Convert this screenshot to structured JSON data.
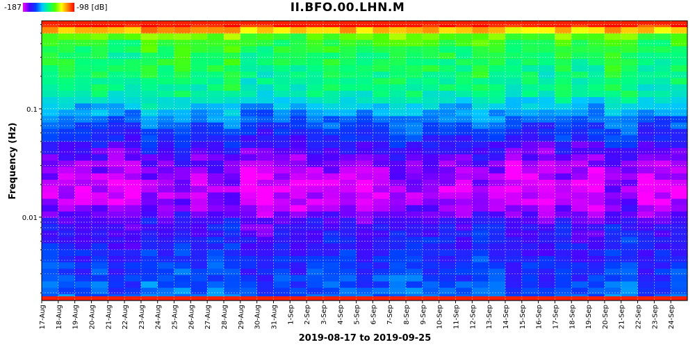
{
  "title": "II.BFO.00.LHN.M",
  "colorbar": {
    "min_label": "-187",
    "max_label": "-98 [dB]",
    "min_db": -187,
    "max_db": -98
  },
  "chart_data": {
    "type": "heatmap",
    "title": "II.BFO.00.LHN.M",
    "xlabel": "2019-08-17 to 2019-09-25",
    "ylabel": "Frequency (Hz)",
    "yscale": "log",
    "ylim": [
      0.0017,
      0.65
    ],
    "y_ticks": [
      {
        "value": 0.1,
        "label": "0.1"
      },
      {
        "value": 0.01,
        "label": "0.01"
      }
    ],
    "grid": true,
    "colormap": [
      "#ff00ff",
      "#5000ff",
      "#0040ff",
      "#00c8ff",
      "#00ff80",
      "#50ff00",
      "#ffff00",
      "#ff8000",
      "#ff0000"
    ],
    "categories": [
      "17-Aug",
      "18-Aug",
      "19-Aug",
      "20-Aug",
      "21-Aug",
      "22-Aug",
      "23-Aug",
      "24-Aug",
      "25-Aug",
      "26-Aug",
      "27-Aug",
      "28-Aug",
      "29-Aug",
      "30-Aug",
      "31-Aug",
      "1-Sep",
      "2-Sep",
      "3-Sep",
      "4-Sep",
      "5-Sep",
      "6-Sep",
      "7-Sep",
      "8-Sep",
      "9-Sep",
      "10-Sep",
      "11-Sep",
      "12-Sep",
      "13-Sep",
      "14-Sep",
      "15-Sep",
      "16-Sep",
      "17-Sep",
      "18-Sep",
      "19-Sep",
      "20-Sep",
      "21-Sep",
      "22-Sep",
      "23-Sep",
      "24-Sep"
    ],
    "frequency_bands_hz": [
      0.6,
      0.45,
      0.3,
      0.2,
      0.14,
      0.1,
      0.075,
      0.055,
      0.04,
      0.03,
      0.022,
      0.016,
      0.012,
      0.009,
      0.0065,
      0.0048,
      0.0035,
      0.0027,
      0.0021,
      0.0018
    ],
    "typical_power_db": [
      -100,
      -135,
      -140,
      -142,
      -145,
      -155,
      -163,
      -168,
      -176,
      -180,
      -183,
      -184,
      -180,
      -174,
      -171,
      -169,
      -167,
      -165,
      -163,
      -162
    ]
  }
}
